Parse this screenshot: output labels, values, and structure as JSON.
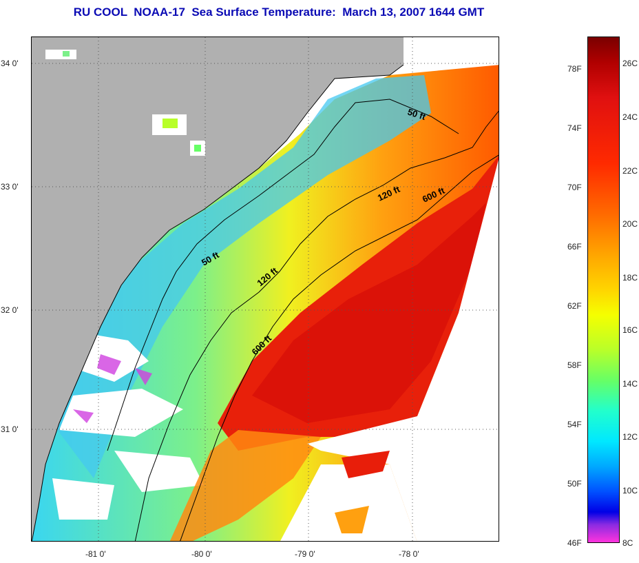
{
  "title": "RU COOL  NOAA-17  Sea Surface Temperature:  March 13, 2007 1644 GMT",
  "lat_labels": [
    "34 0'",
    "33 0'",
    "32 0'",
    "31 0'"
  ],
  "lon_labels": [
    "-81 0'",
    "-80 0'",
    "-79 0'",
    "-78 0'"
  ],
  "contour_labels": [
    "50 ft",
    "120 ft",
    "600 ft",
    "50 ft",
    "120 ft",
    "600 ft"
  ],
  "colorbar": {
    "fahrenheit": [
      "78F",
      "74F",
      "70F",
      "66F",
      "62F",
      "58F",
      "54F",
      "50F",
      "46F"
    ],
    "celsius": [
      "26C",
      "24C",
      "22C",
      "20C",
      "18C",
      "16C",
      "14C",
      "12C",
      "10C",
      "8C"
    ]
  },
  "colors": {
    "land": "#b0b0b0",
    "title": "#0a0ab4",
    "warm": "#e81e0a",
    "cool": "#3ad6f0"
  }
}
